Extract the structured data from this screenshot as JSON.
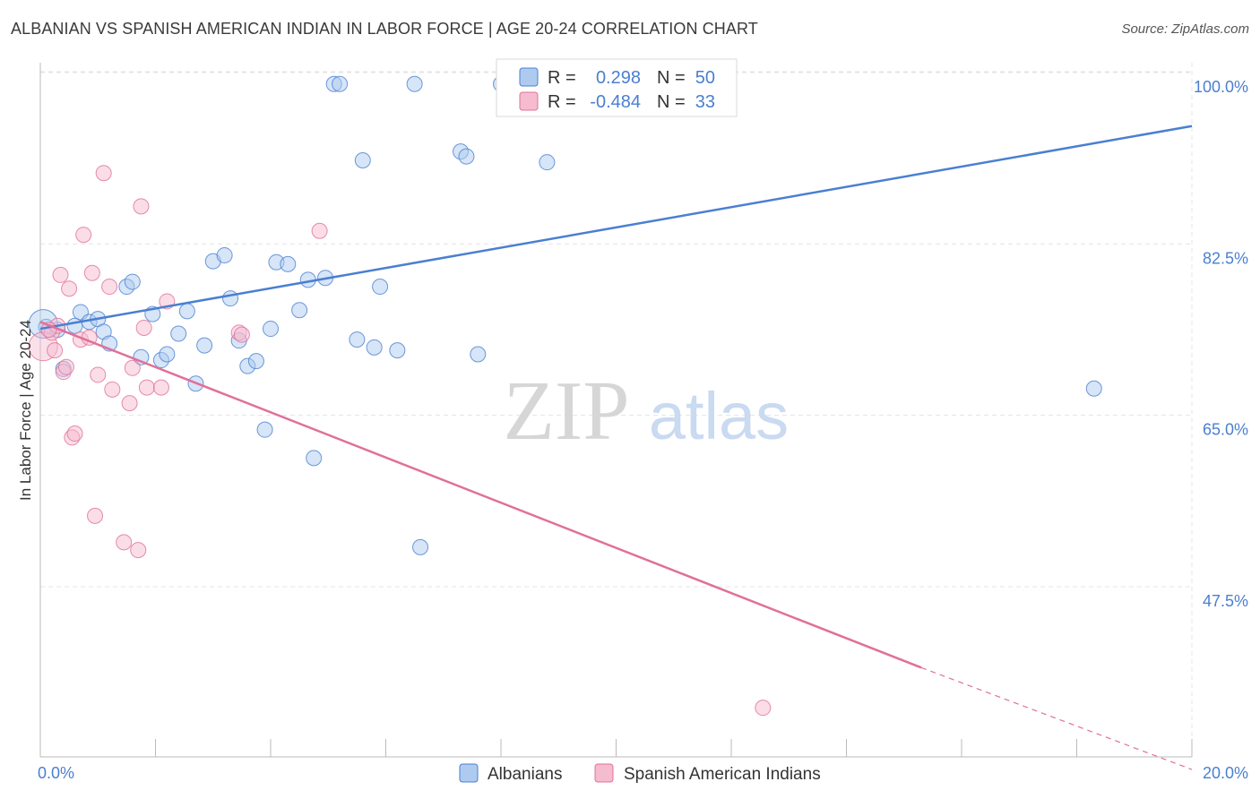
{
  "title": "ALBANIAN VS SPANISH AMERICAN INDIAN IN LABOR FORCE | AGE 20-24 CORRELATION CHART",
  "source": "Source: ZipAtlas.com",
  "watermark": {
    "zip": "ZIP",
    "atlas": "atlas"
  },
  "colors": {
    "blue": "#4a7fd1",
    "blue_fill": "#aecbef",
    "pink": "#e07099",
    "pink_fill": "#f5bccf"
  },
  "legend": {
    "rows": [
      {
        "r_label": "R =",
        "r_value": "0.298",
        "n_label": "N =",
        "n_value": "50"
      },
      {
        "r_label": "R =",
        "r_value": "-0.484",
        "n_label": "N =",
        "n_value": "33"
      }
    ]
  },
  "chart_data": {
    "type": "scatter",
    "title": "ALBANIAN VS SPANISH AMERICAN INDIAN IN LABOR FORCE | AGE 20-24 CORRELATION CHART",
    "ylabel": "In Labor Force | Age 20-24",
    "xlim": [
      0,
      20
    ],
    "ylim": [
      29,
      102
    ],
    "x_tick_labels": [
      "0.0%",
      "20.0%"
    ],
    "y_ticks": [
      47.5,
      65.0,
      82.5,
      100.0
    ],
    "y_tick_labels": [
      "47.5%",
      "65.0%",
      "82.5%",
      "100.0%"
    ],
    "grid": true,
    "series": [
      {
        "name": "Albanians",
        "color": "#4a7fd1",
        "trend": {
          "x0": 0,
          "y0": 75.3,
          "x1": 20,
          "y1": 96.0
        },
        "points": [
          [
            0.1,
            75.5
          ],
          [
            0.3,
            75.2
          ],
          [
            0.4,
            71.2
          ],
          [
            0.6,
            75.6
          ],
          [
            0.7,
            77.0
          ],
          [
            0.85,
            76.0
          ],
          [
            1.0,
            76.3
          ],
          [
            1.1,
            75.0
          ],
          [
            1.2,
            73.8
          ],
          [
            1.5,
            79.6
          ],
          [
            1.6,
            80.1
          ],
          [
            1.75,
            72.4
          ],
          [
            1.95,
            76.8
          ],
          [
            2.1,
            72.1
          ],
          [
            2.2,
            72.7
          ],
          [
            2.4,
            74.8
          ],
          [
            2.55,
            77.1
          ],
          [
            2.7,
            69.7
          ],
          [
            2.85,
            73.6
          ],
          [
            3.0,
            82.2
          ],
          [
            3.2,
            82.8
          ],
          [
            3.3,
            78.4
          ],
          [
            3.45,
            74.1
          ],
          [
            3.6,
            71.5
          ],
          [
            3.75,
            72.0
          ],
          [
            3.9,
            65.0
          ],
          [
            4.0,
            75.3
          ],
          [
            4.1,
            82.1
          ],
          [
            4.3,
            81.9
          ],
          [
            4.5,
            77.2
          ],
          [
            4.65,
            80.3
          ],
          [
            4.75,
            62.1
          ],
          [
            4.95,
            80.5
          ],
          [
            5.1,
            100.3
          ],
          [
            5.2,
            100.3
          ],
          [
            5.5,
            74.2
          ],
          [
            5.6,
            92.5
          ],
          [
            5.8,
            73.4
          ],
          [
            5.9,
            79.6
          ],
          [
            6.2,
            73.1
          ],
          [
            6.5,
            100.3
          ],
          [
            6.6,
            53.0
          ],
          [
            7.3,
            93.4
          ],
          [
            7.4,
            92.9
          ],
          [
            7.6,
            72.7
          ],
          [
            8.0,
            100.3
          ],
          [
            8.5,
            100.3
          ],
          [
            8.8,
            92.3
          ],
          [
            18.3,
            69.2
          ],
          [
            0.05,
            75.8
          ]
        ]
      },
      {
        "name": "Spanish American Indians",
        "color": "#e07099",
        "trend": {
          "x0": 0,
          "y0": 76.0,
          "x1": 15.3,
          "y1": 40.7,
          "x_dash_end": 20,
          "y_dash_end": 30.3
        },
        "points": [
          [
            0.05,
            73.5
          ],
          [
            0.2,
            74.9
          ],
          [
            0.25,
            73.1
          ],
          [
            0.3,
            75.6
          ],
          [
            0.35,
            80.8
          ],
          [
            0.4,
            70.9
          ],
          [
            0.5,
            79.4
          ],
          [
            0.55,
            64.2
          ],
          [
            0.6,
            64.6
          ],
          [
            0.7,
            74.2
          ],
          [
            0.75,
            84.9
          ],
          [
            0.85,
            74.4
          ],
          [
            0.9,
            81.0
          ],
          [
            0.95,
            56.2
          ],
          [
            1.0,
            70.6
          ],
          [
            1.1,
            91.2
          ],
          [
            1.2,
            79.6
          ],
          [
            1.25,
            69.1
          ],
          [
            1.45,
            53.5
          ],
          [
            1.55,
            67.7
          ],
          [
            1.6,
            71.3
          ],
          [
            1.7,
            52.7
          ],
          [
            1.75,
            87.8
          ],
          [
            1.8,
            75.4
          ],
          [
            1.85,
            69.3
          ],
          [
            2.1,
            69.3
          ],
          [
            2.2,
            78.1
          ],
          [
            3.45,
            74.9
          ],
          [
            3.5,
            74.7
          ],
          [
            4.85,
            85.3
          ],
          [
            12.55,
            36.6
          ],
          [
            0.15,
            75.2
          ],
          [
            0.45,
            71.4
          ]
        ]
      }
    ]
  },
  "bottom_legend": [
    {
      "label": "Albanians",
      "color": "#4a7fd1"
    },
    {
      "label": "Spanish American Indians",
      "color": "#e07099"
    }
  ]
}
